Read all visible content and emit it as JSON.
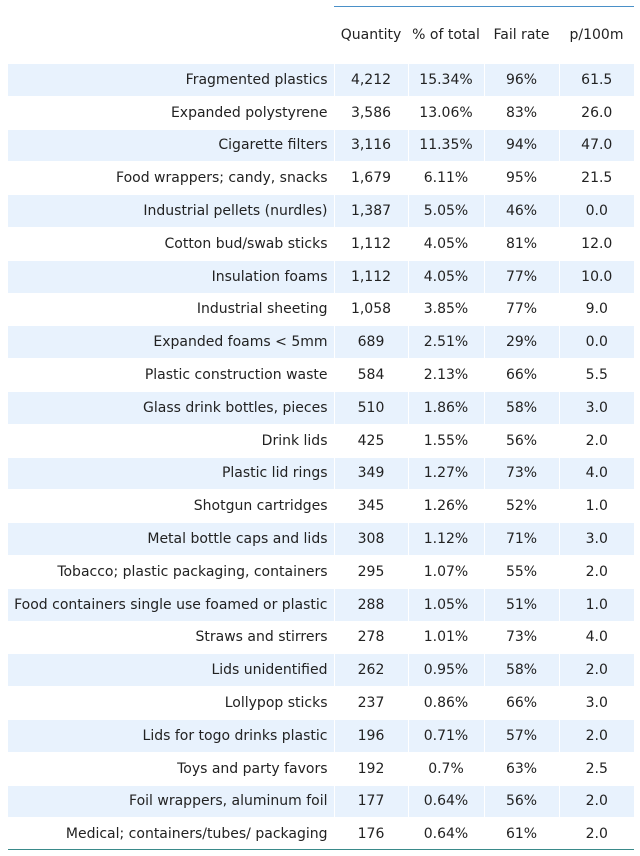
{
  "table": {
    "columns": [
      "",
      "Quantity",
      "% of total",
      "Fail rate",
      "p/100m"
    ],
    "rows": [
      [
        "Fragmented plastics",
        "4,212",
        "15.34%",
        "96%",
        "61.5"
      ],
      [
        "Expanded polystyrene",
        "3,586",
        "13.06%",
        "83%",
        "26.0"
      ],
      [
        "Cigarette filters",
        "3,116",
        "11.35%",
        "94%",
        "47.0"
      ],
      [
        "Food wrappers; candy, snacks",
        "1,679",
        "6.11%",
        "95%",
        "21.5"
      ],
      [
        "Industrial pellets (nurdles)",
        "1,387",
        "5.05%",
        "46%",
        "0.0"
      ],
      [
        "Cotton bud/swab sticks",
        "1,112",
        "4.05%",
        "81%",
        "12.0"
      ],
      [
        "Insulation foams",
        "1,112",
        "4.05%",
        "77%",
        "10.0"
      ],
      [
        "Industrial sheeting",
        "1,058",
        "3.85%",
        "77%",
        "9.0"
      ],
      [
        "Expanded foams < 5mm",
        "689",
        "2.51%",
        "29%",
        "0.0"
      ],
      [
        "Plastic construction waste",
        "584",
        "2.13%",
        "66%",
        "5.5"
      ],
      [
        "Glass drink bottles, pieces",
        "510",
        "1.86%",
        "58%",
        "3.0"
      ],
      [
        "Drink lids",
        "425",
        "1.55%",
        "56%",
        "2.0"
      ],
      [
        "Plastic lid rings",
        "349",
        "1.27%",
        "73%",
        "4.0"
      ],
      [
        "Shotgun cartridges",
        "345",
        "1.26%",
        "52%",
        "1.0"
      ],
      [
        "Metal bottle caps and lids",
        "308",
        "1.12%",
        "71%",
        "3.0"
      ],
      [
        "Tobacco; plastic packaging, containers",
        "295",
        "1.07%",
        "55%",
        "2.0"
      ],
      [
        "Food containers single use foamed or plastic",
        "288",
        "1.05%",
        "51%",
        "1.0"
      ],
      [
        "Straws and stirrers",
        "278",
        "1.01%",
        "73%",
        "4.0"
      ],
      [
        "Lids unidentified",
        "262",
        "0.95%",
        "58%",
        "2.0"
      ],
      [
        "Lollypop sticks",
        "237",
        "0.86%",
        "66%",
        "3.0"
      ],
      [
        "Lids for togo drinks plastic",
        "196",
        "0.71%",
        "57%",
        "2.0"
      ],
      [
        "Toys and party favors",
        "192",
        "0.7%",
        "63%",
        "2.5"
      ],
      [
        "Foil wrappers, aluminum foil",
        "177",
        "0.64%",
        "56%",
        "2.0"
      ],
      [
        "Medical; containers/tubes/ packaging",
        "176",
        "0.64%",
        "61%",
        "2.0"
      ]
    ]
  },
  "colors": {
    "row_stripe": "#e8f2fd",
    "header_rule": "#4a90c8",
    "bottom_rule": "#3a8a8a"
  }
}
